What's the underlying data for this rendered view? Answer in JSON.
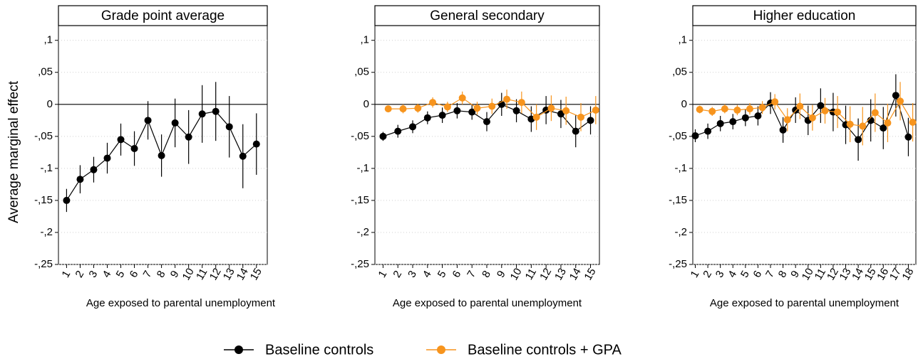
{
  "chart_data": [
    {
      "type": "line",
      "title": "Grade point average",
      "ylabel": "Average marginal effect",
      "xlabel": "Age exposed to parental unemployment",
      "x": [
        1,
        2,
        3,
        4,
        5,
        6,
        7,
        8,
        9,
        10,
        11,
        12,
        13,
        14,
        15
      ],
      "xlim": [
        0.4,
        15.8
      ],
      "xticks": [
        1,
        2,
        3,
        4,
        5,
        6,
        7,
        8,
        9,
        10,
        11,
        12,
        13,
        14,
        15
      ],
      "ylim": [
        -0.25,
        0.123
      ],
      "yticks": [
        {
          "value": 0.1,
          "label": ",1"
        },
        {
          "value": 0.05,
          "label": ",05"
        },
        0,
        {
          "value": -0.05,
          "label": "-,05"
        },
        {
          "value": -0.1,
          "label": "-,1"
        },
        {
          "value": -0.15,
          "label": "-,15"
        },
        {
          "value": -0.2,
          "label": "-,2"
        },
        {
          "value": -0.25,
          "label": "-,25"
        }
      ],
      "grid": true,
      "zero_line": true,
      "series": [
        {
          "name": "Baseline controls",
          "color": "#000000",
          "values": [
            -0.15,
            -0.117,
            -0.102,
            -0.084,
            -0.055,
            -0.069,
            -0.025,
            -0.08,
            -0.029,
            -0.051,
            -0.015,
            -0.011,
            -0.035,
            -0.081,
            -0.062
          ],
          "errors": [
            0.018,
            0.022,
            0.02,
            0.024,
            0.025,
            0.027,
            0.03,
            0.033,
            0.038,
            0.042,
            0.045,
            0.046,
            0.048,
            0.05,
            0.048
          ]
        }
      ]
    },
    {
      "type": "line",
      "title": "General secondary",
      "xlabel": "Age exposed to parental unemployment",
      "x": [
        1,
        2,
        3,
        4,
        5,
        6,
        7,
        8,
        9,
        10,
        11,
        12,
        13,
        14,
        15
      ],
      "xlim": [
        0.45,
        15.6
      ],
      "xticks": [
        1,
        2,
        3,
        4,
        5,
        6,
        7,
        8,
        9,
        10,
        11,
        12,
        13,
        14,
        15
      ],
      "ylim": [
        -0.25,
        0.123
      ],
      "yticks": [
        {
          "value": 0.1,
          "label": ",1"
        },
        {
          "value": 0.05,
          "label": ",05"
        },
        0,
        {
          "value": -0.05,
          "label": "-,05"
        },
        {
          "value": -0.1,
          "label": "-,1"
        },
        {
          "value": -0.15,
          "label": "-,15"
        },
        {
          "value": -0.2,
          "label": "-,2"
        },
        {
          "value": -0.25,
          "label": "-,25"
        }
      ],
      "grid": true,
      "zero_line": true,
      "series": [
        {
          "name": "Baseline controls",
          "color": "#000000",
          "values": [
            -0.05,
            -0.042,
            -0.035,
            -0.021,
            -0.017,
            -0.01,
            -0.012,
            -0.027,
            0.0,
            -0.01,
            -0.023,
            -0.009,
            -0.015,
            -0.042,
            -0.025
          ],
          "errors": [
            0.007,
            0.01,
            0.01,
            0.01,
            0.012,
            0.012,
            0.012,
            0.015,
            0.018,
            0.018,
            0.02,
            0.022,
            0.022,
            0.025,
            0.022
          ]
        },
        {
          "name": "Baseline controls + GPA",
          "color": "#f7941d",
          "values": [
            -0.007,
            -0.007,
            -0.006,
            0.003,
            -0.004,
            0.01,
            -0.006,
            -0.003,
            0.008,
            0.003,
            -0.02,
            -0.006,
            -0.01,
            -0.02,
            -0.009
          ],
          "errors": [
            0.005,
            0.007,
            0.007,
            0.008,
            0.008,
            0.01,
            0.01,
            0.012,
            0.015,
            0.017,
            0.02,
            0.02,
            0.022,
            0.022,
            0.022
          ]
        }
      ]
    },
    {
      "type": "line",
      "title": "Higher education",
      "xlabel": "Age exposed to parental unemployment",
      "x": [
        1,
        2,
        3,
        4,
        5,
        6,
        7,
        8,
        9,
        10,
        11,
        12,
        13,
        14,
        15,
        16,
        17,
        18
      ],
      "xlim": [
        0.8,
        18.6
      ],
      "xticks": [
        1,
        2,
        3,
        4,
        5,
        6,
        7,
        8,
        9,
        10,
        11,
        12,
        13,
        14,
        15,
        16,
        17,
        18
      ],
      "ylim": [
        -0.25,
        0.123
      ],
      "yticks": [
        {
          "value": 0.1,
          "label": ",1"
        },
        {
          "value": 0.05,
          "label": ",05"
        },
        0,
        {
          "value": -0.05,
          "label": "-,05"
        },
        {
          "value": -0.1,
          "label": "-,1"
        },
        {
          "value": -0.15,
          "label": "-,15"
        },
        {
          "value": -0.2,
          "label": "-,2"
        },
        {
          "value": -0.25,
          "label": "-,25"
        }
      ],
      "grid": true,
      "zero_line": true,
      "series": [
        {
          "name": "Baseline controls",
          "color": "#000000",
          "values": [
            -0.049,
            -0.042,
            -0.03,
            -0.027,
            -0.021,
            -0.018,
            0.002,
            -0.04,
            -0.009,
            -0.025,
            -0.002,
            -0.012,
            -0.032,
            -0.055,
            -0.025,
            -0.037,
            0.014,
            -0.051
          ],
          "errors": [
            0.01,
            0.012,
            0.012,
            0.012,
            0.013,
            0.015,
            0.017,
            0.02,
            0.02,
            0.023,
            0.027,
            0.03,
            0.03,
            0.033,
            0.033,
            0.033,
            0.033,
            0.03
          ]
        },
        {
          "name": "Baseline controls + GPA",
          "color": "#f7941d",
          "values": [
            -0.008,
            -0.011,
            -0.007,
            -0.009,
            -0.007,
            -0.005,
            0.004,
            -0.024,
            -0.003,
            -0.021,
            -0.01,
            -0.012,
            -0.031,
            -0.034,
            -0.013,
            -0.029,
            0.005,
            -0.028
          ],
          "errors": [
            0.006,
            0.007,
            0.007,
            0.008,
            0.009,
            0.01,
            0.012,
            0.018,
            0.02,
            0.02,
            0.02,
            0.025,
            0.028,
            0.03,
            0.03,
            0.03,
            0.03,
            0.03
          ]
        }
      ]
    }
  ]
}
